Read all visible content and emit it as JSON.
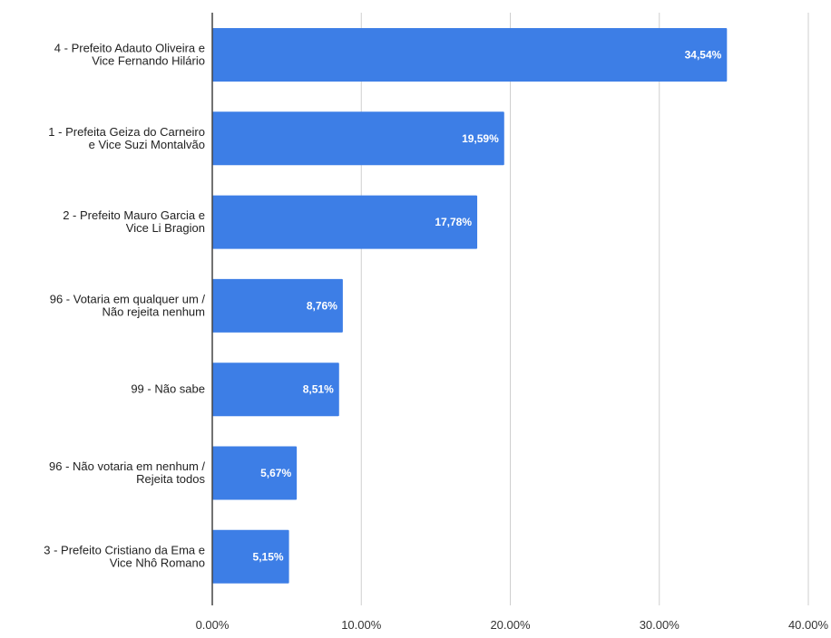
{
  "chart_data": {
    "type": "bar",
    "orientation": "horizontal",
    "title": "",
    "xlabel": "",
    "ylabel": "",
    "xlim": [
      0,
      40
    ],
    "grid": true,
    "bar_color": "#3d7ee6",
    "x_ticks": [
      "0.00%",
      "10.00%",
      "20.00%",
      "30.00%",
      "40.00%"
    ],
    "x_tick_values": [
      0,
      10,
      20,
      30,
      40
    ],
    "categories": [
      [
        "4 - Prefeito Adauto Oliveira e",
        "Vice Fernando Hilário"
      ],
      [
        "1 - Prefeita Geiza do Carneiro",
        "e Vice Suzi Montalvão"
      ],
      [
        "2 - Prefeito Mauro Garcia e",
        "Vice Li Bragion"
      ],
      [
        "96 - Votaria em qualquer um /",
        "Não rejeita nenhum"
      ],
      [
        "99 - Não sabe"
      ],
      [
        "96 - Não votaria em nenhum /",
        "Rejeita todos"
      ],
      [
        "3 - Prefeito Cristiano da Ema e",
        "Vice Nhô Romano"
      ]
    ],
    "values": [
      34.54,
      19.59,
      17.78,
      8.76,
      8.51,
      5.67,
      5.15
    ],
    "value_labels": [
      "34,54%",
      "19,59%",
      "17,78%",
      "8,76%",
      "8,51%",
      "5,67%",
      "5,15%"
    ]
  }
}
